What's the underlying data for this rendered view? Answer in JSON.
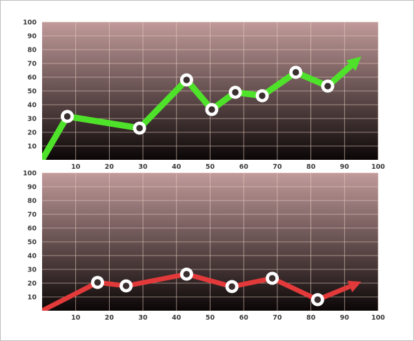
{
  "colors": {
    "plot_top": "#c19a9a",
    "plot_bottom": "#0b0606",
    "grid": "#e6cfc2",
    "marker_ring": "#ffffff",
    "marker_center": "#3a2f2f",
    "tick_text": "#3a3a3a"
  },
  "chart_data": [
    {
      "type": "line",
      "title": "",
      "xlabel": "",
      "ylabel": "",
      "xlim": [
        0,
        100
      ],
      "ylim": [
        0,
        100
      ],
      "grid": true,
      "x_ticks": [
        "10",
        "20",
        "30",
        "40",
        "50",
        "60",
        "70",
        "80",
        "90",
        "100"
      ],
      "y_ticks": [
        "10",
        "20",
        "30",
        "40",
        "50",
        "60",
        "70",
        "80",
        "90",
        "100"
      ],
      "series": [
        {
          "color": "#4fe22a",
          "start": [
            0,
            0
          ],
          "points": [
            [
              7.5,
              31.5
            ],
            [
              29,
              23
            ],
            [
              43,
              58
            ],
            [
              50.5,
              36.5
            ],
            [
              57.5,
              49
            ],
            [
              65.5,
              46.5
            ],
            [
              75.5,
              63.5
            ],
            [
              85,
              53.5
            ]
          ],
          "arrow_to": [
            95,
            75
          ]
        }
      ]
    },
    {
      "type": "line",
      "title": "",
      "xlabel": "",
      "ylabel": "",
      "xlim": [
        0,
        100
      ],
      "ylim": [
        0,
        100
      ],
      "grid": true,
      "x_ticks": [
        "10",
        "20",
        "30",
        "40",
        "50",
        "60",
        "70",
        "80",
        "90",
        "100"
      ],
      "y_ticks": [
        "10",
        "20",
        "30",
        "40",
        "50",
        "60",
        "70",
        "80",
        "90",
        "100"
      ],
      "series": [
        {
          "color": "#e23a3a",
          "start": [
            0,
            0
          ],
          "points": [
            [
              16.5,
              20.5
            ],
            [
              25,
              18
            ],
            [
              43,
              26.5
            ],
            [
              56.5,
              17.5
            ],
            [
              68.5,
              23.5
            ],
            [
              82,
              8
            ]
          ],
          "arrow_to": [
            95,
            21
          ]
        }
      ]
    }
  ]
}
